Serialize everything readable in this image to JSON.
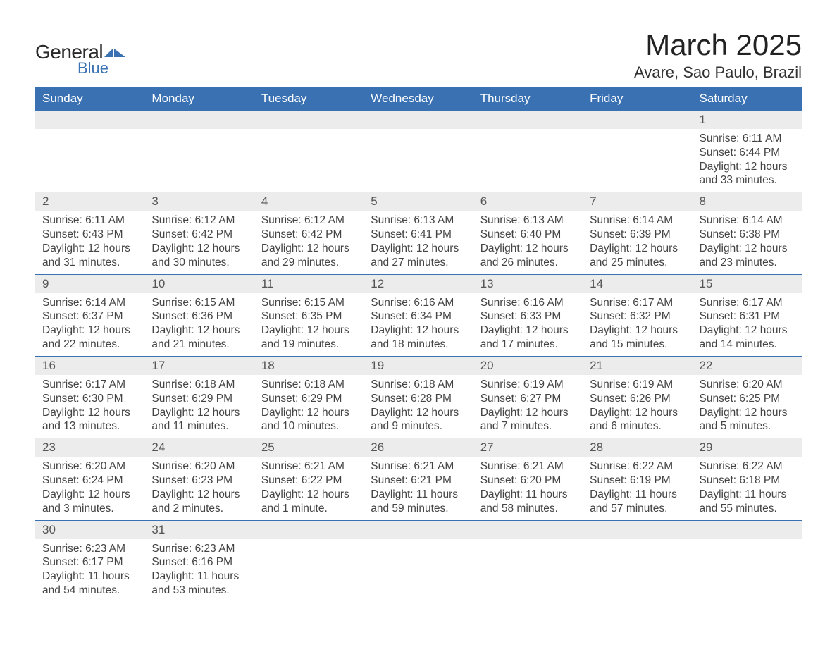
{
  "logo": {
    "text1": "General",
    "text2": "Blue",
    "mark_color": "#3971b3"
  },
  "title": "March 2025",
  "location": "Avare, Sao Paulo, Brazil",
  "colors": {
    "header_bg": "#3971b3",
    "header_text": "#ffffff",
    "daynum_bg": "#ececec",
    "daynum_text": "#555555",
    "body_text": "#444444",
    "border": "#3971b3"
  },
  "day_headers": [
    "Sunday",
    "Monday",
    "Tuesday",
    "Wednesday",
    "Thursday",
    "Friday",
    "Saturday"
  ],
  "weeks": [
    [
      null,
      null,
      null,
      null,
      null,
      null,
      {
        "n": "1",
        "sunrise": "Sunrise: 6:11 AM",
        "sunset": "Sunset: 6:44 PM",
        "daylight": "Daylight: 12 hours and 33 minutes."
      }
    ],
    [
      {
        "n": "2",
        "sunrise": "Sunrise: 6:11 AM",
        "sunset": "Sunset: 6:43 PM",
        "daylight": "Daylight: 12 hours and 31 minutes."
      },
      {
        "n": "3",
        "sunrise": "Sunrise: 6:12 AM",
        "sunset": "Sunset: 6:42 PM",
        "daylight": "Daylight: 12 hours and 30 minutes."
      },
      {
        "n": "4",
        "sunrise": "Sunrise: 6:12 AM",
        "sunset": "Sunset: 6:42 PM",
        "daylight": "Daylight: 12 hours and 29 minutes."
      },
      {
        "n": "5",
        "sunrise": "Sunrise: 6:13 AM",
        "sunset": "Sunset: 6:41 PM",
        "daylight": "Daylight: 12 hours and 27 minutes."
      },
      {
        "n": "6",
        "sunrise": "Sunrise: 6:13 AM",
        "sunset": "Sunset: 6:40 PM",
        "daylight": "Daylight: 12 hours and 26 minutes."
      },
      {
        "n": "7",
        "sunrise": "Sunrise: 6:14 AM",
        "sunset": "Sunset: 6:39 PM",
        "daylight": "Daylight: 12 hours and 25 minutes."
      },
      {
        "n": "8",
        "sunrise": "Sunrise: 6:14 AM",
        "sunset": "Sunset: 6:38 PM",
        "daylight": "Daylight: 12 hours and 23 minutes."
      }
    ],
    [
      {
        "n": "9",
        "sunrise": "Sunrise: 6:14 AM",
        "sunset": "Sunset: 6:37 PM",
        "daylight": "Daylight: 12 hours and 22 minutes."
      },
      {
        "n": "10",
        "sunrise": "Sunrise: 6:15 AM",
        "sunset": "Sunset: 6:36 PM",
        "daylight": "Daylight: 12 hours and 21 minutes."
      },
      {
        "n": "11",
        "sunrise": "Sunrise: 6:15 AM",
        "sunset": "Sunset: 6:35 PM",
        "daylight": "Daylight: 12 hours and 19 minutes."
      },
      {
        "n": "12",
        "sunrise": "Sunrise: 6:16 AM",
        "sunset": "Sunset: 6:34 PM",
        "daylight": "Daylight: 12 hours and 18 minutes."
      },
      {
        "n": "13",
        "sunrise": "Sunrise: 6:16 AM",
        "sunset": "Sunset: 6:33 PM",
        "daylight": "Daylight: 12 hours and 17 minutes."
      },
      {
        "n": "14",
        "sunrise": "Sunrise: 6:17 AM",
        "sunset": "Sunset: 6:32 PM",
        "daylight": "Daylight: 12 hours and 15 minutes."
      },
      {
        "n": "15",
        "sunrise": "Sunrise: 6:17 AM",
        "sunset": "Sunset: 6:31 PM",
        "daylight": "Daylight: 12 hours and 14 minutes."
      }
    ],
    [
      {
        "n": "16",
        "sunrise": "Sunrise: 6:17 AM",
        "sunset": "Sunset: 6:30 PM",
        "daylight": "Daylight: 12 hours and 13 minutes."
      },
      {
        "n": "17",
        "sunrise": "Sunrise: 6:18 AM",
        "sunset": "Sunset: 6:29 PM",
        "daylight": "Daylight: 12 hours and 11 minutes."
      },
      {
        "n": "18",
        "sunrise": "Sunrise: 6:18 AM",
        "sunset": "Sunset: 6:29 PM",
        "daylight": "Daylight: 12 hours and 10 minutes."
      },
      {
        "n": "19",
        "sunrise": "Sunrise: 6:18 AM",
        "sunset": "Sunset: 6:28 PM",
        "daylight": "Daylight: 12 hours and 9 minutes."
      },
      {
        "n": "20",
        "sunrise": "Sunrise: 6:19 AM",
        "sunset": "Sunset: 6:27 PM",
        "daylight": "Daylight: 12 hours and 7 minutes."
      },
      {
        "n": "21",
        "sunrise": "Sunrise: 6:19 AM",
        "sunset": "Sunset: 6:26 PM",
        "daylight": "Daylight: 12 hours and 6 minutes."
      },
      {
        "n": "22",
        "sunrise": "Sunrise: 6:20 AM",
        "sunset": "Sunset: 6:25 PM",
        "daylight": "Daylight: 12 hours and 5 minutes."
      }
    ],
    [
      {
        "n": "23",
        "sunrise": "Sunrise: 6:20 AM",
        "sunset": "Sunset: 6:24 PM",
        "daylight": "Daylight: 12 hours and 3 minutes."
      },
      {
        "n": "24",
        "sunrise": "Sunrise: 6:20 AM",
        "sunset": "Sunset: 6:23 PM",
        "daylight": "Daylight: 12 hours and 2 minutes."
      },
      {
        "n": "25",
        "sunrise": "Sunrise: 6:21 AM",
        "sunset": "Sunset: 6:22 PM",
        "daylight": "Daylight: 12 hours and 1 minute."
      },
      {
        "n": "26",
        "sunrise": "Sunrise: 6:21 AM",
        "sunset": "Sunset: 6:21 PM",
        "daylight": "Daylight: 11 hours and 59 minutes."
      },
      {
        "n": "27",
        "sunrise": "Sunrise: 6:21 AM",
        "sunset": "Sunset: 6:20 PM",
        "daylight": "Daylight: 11 hours and 58 minutes."
      },
      {
        "n": "28",
        "sunrise": "Sunrise: 6:22 AM",
        "sunset": "Sunset: 6:19 PM",
        "daylight": "Daylight: 11 hours and 57 minutes."
      },
      {
        "n": "29",
        "sunrise": "Sunrise: 6:22 AM",
        "sunset": "Sunset: 6:18 PM",
        "daylight": "Daylight: 11 hours and 55 minutes."
      }
    ],
    [
      {
        "n": "30",
        "sunrise": "Sunrise: 6:23 AM",
        "sunset": "Sunset: 6:17 PM",
        "daylight": "Daylight: 11 hours and 54 minutes."
      },
      {
        "n": "31",
        "sunrise": "Sunrise: 6:23 AM",
        "sunset": "Sunset: 6:16 PM",
        "daylight": "Daylight: 11 hours and 53 minutes."
      },
      null,
      null,
      null,
      null,
      null
    ]
  ]
}
